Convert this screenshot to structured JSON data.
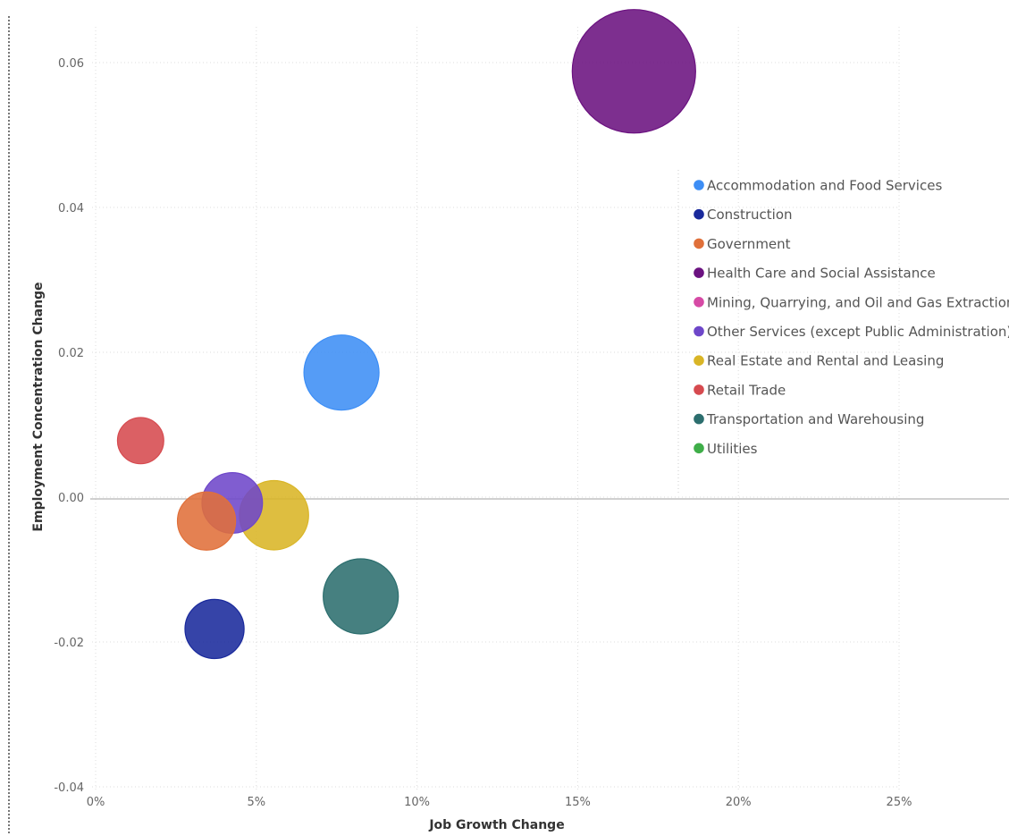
{
  "chart_data": {
    "type": "scatter",
    "title": "",
    "xlabel": "Job Growth Change",
    "ylabel": "Employment Concentration Change",
    "xlim": [
      0,
      0.25
    ],
    "ylim": [
      -0.04,
      0.06
    ],
    "x_ticks": [
      {
        "value": 0,
        "label": "0%"
      },
      {
        "value": 0.05,
        "label": "5%"
      },
      {
        "value": 0.1,
        "label": "10%"
      },
      {
        "value": 0.15,
        "label": "15%"
      },
      {
        "value": 0.2,
        "label": "20%"
      },
      {
        "value": 0.25,
        "label": "25%"
      }
    ],
    "y_ticks": [
      {
        "value": -0.04,
        "label": "-0.04"
      },
      {
        "value": -0.02,
        "label": "-0.02"
      },
      {
        "value": 0.0,
        "label": "0.00"
      },
      {
        "value": 0.02,
        "label": "0.02"
      },
      {
        "value": 0.04,
        "label": "0.04"
      },
      {
        "value": 0.06,
        "label": "0.06"
      }
    ],
    "grid": true,
    "legend_position": "right",
    "series": [
      {
        "name": "Accommodation and Food Services",
        "color": "#3d8ef5",
        "x": 0.0765,
        "y": 0.0172,
        "size": 1.0
      },
      {
        "name": "Construction",
        "color": "#1a2a9c",
        "x": 0.037,
        "y": -0.0182,
        "size": 0.62
      },
      {
        "name": "Government",
        "color": "#e0703a",
        "x": 0.0345,
        "y": -0.0033,
        "size": 0.6
      },
      {
        "name": "Health Care and Social Assistance",
        "color": "#6b1280",
        "x": 0.1675,
        "y": 0.0588,
        "size": 2.7
      },
      {
        "name": "Mining, Quarrying, and Oil and Gas Extraction",
        "color": "#d64aa5",
        "x": null,
        "y": null,
        "size": 0
      },
      {
        "name": "Other Services (except Public Administration)",
        "color": "#6e47c9",
        "x": 0.0425,
        "y": -0.0008,
        "size": 0.65
      },
      {
        "name": "Real Estate and Rental and Leasing",
        "color": "#d9b526",
        "x": 0.0555,
        "y": -0.0025,
        "size": 0.85
      },
      {
        "name": "Retail Trade",
        "color": "#d64a4f",
        "x": 0.014,
        "y": 0.0078,
        "size": 0.38
      },
      {
        "name": "Transportation and Warehousing",
        "color": "#2c6e6e",
        "x": 0.0825,
        "y": -0.0137,
        "size": 1.0
      },
      {
        "name": "Utilities",
        "color": "#3fae49",
        "x": null,
        "y": null,
        "size": 0
      }
    ]
  }
}
